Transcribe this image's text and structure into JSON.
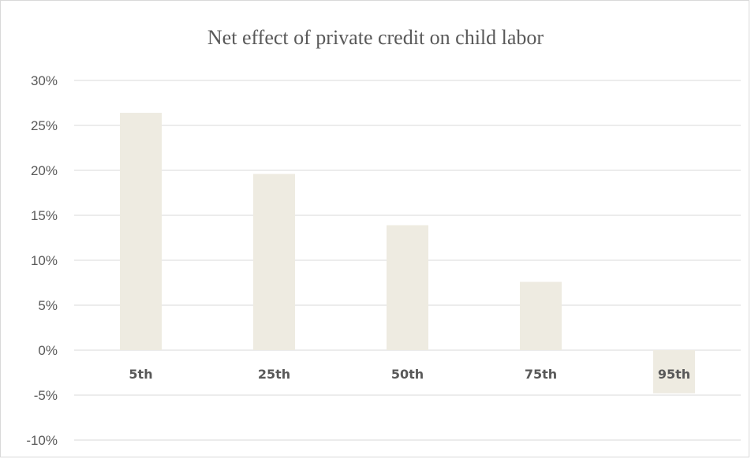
{
  "chart_data": {
    "type": "bar",
    "title": "Net effect of private credit on child labor",
    "xlabel": "",
    "ylabel": "",
    "categories": [
      "5th",
      "25th",
      "50th",
      "75th",
      "95th"
    ],
    "values": [
      0.264,
      0.196,
      0.139,
      0.076,
      -0.048
    ],
    "ylim": [
      -0.1,
      0.3
    ],
    "yticks": [
      0.3,
      0.25,
      0.2,
      0.15,
      0.1,
      0.05,
      0.0,
      -0.05,
      -0.1
    ],
    "ytick_labels": [
      "30%",
      "25%",
      "20%",
      "15%",
      "10%",
      "5%",
      "0%",
      "-5%",
      "-10%"
    ],
    "grid": true,
    "legend": "none",
    "colors": {
      "bar": "#eeebe1",
      "grid": "#d9d9d9",
      "text": "#595959"
    }
  }
}
